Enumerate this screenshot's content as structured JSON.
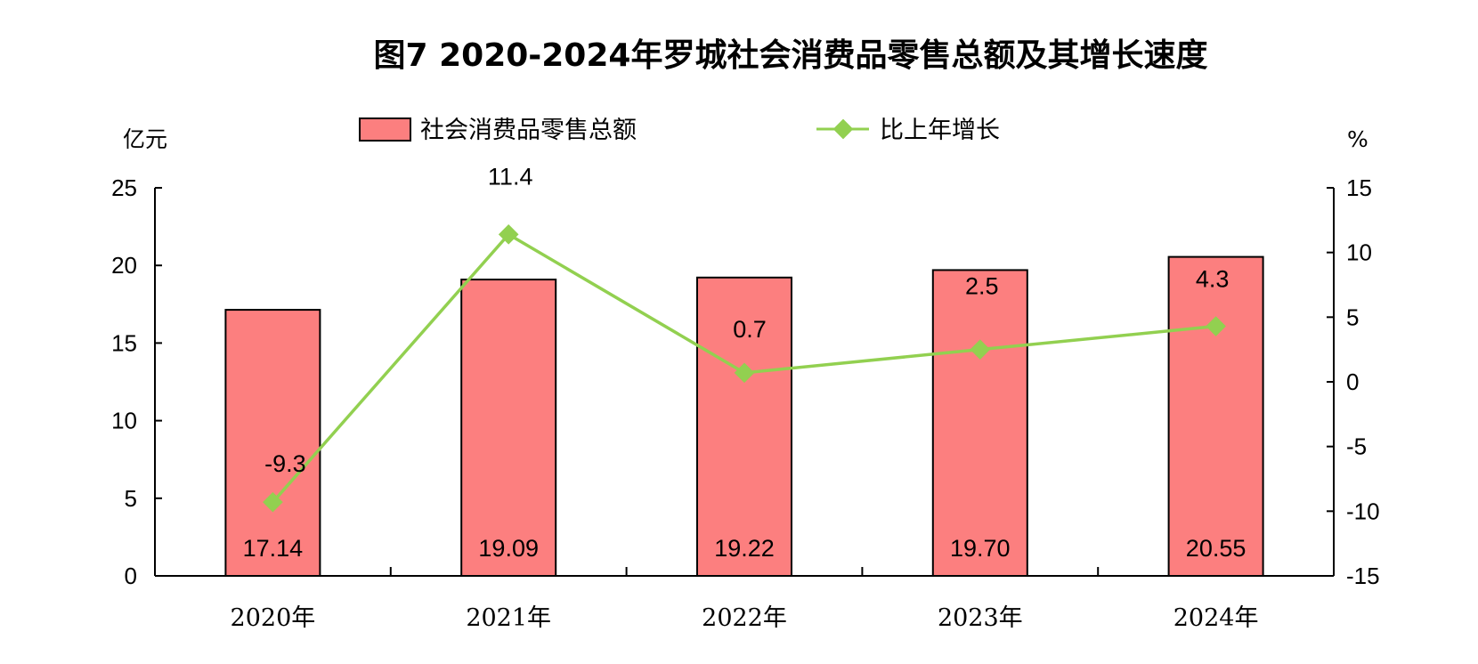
{
  "chart_data": {
    "type": "bar",
    "title": "图7  2020-2024年罗城社会消费品零售总额及其增长速度",
    "categories": [
      "2020年",
      "2021年",
      "2022年",
      "2023年",
      "2024年"
    ],
    "left_axis": {
      "unit": "亿元",
      "ylim": [
        0,
        25
      ],
      "ticks": [
        0,
        5,
        10,
        15,
        20,
        25
      ]
    },
    "right_axis": {
      "unit": "%",
      "ylim": [
        -15,
        15
      ],
      "ticks": [
        -15,
        -10,
        -5,
        0,
        5,
        10,
        15
      ]
    },
    "series": [
      {
        "name": "社会消费品零售总额",
        "type": "bar",
        "axis": "left",
        "color": "#fc7f7f",
        "values": [
          17.14,
          19.09,
          19.22,
          19.7,
          20.55
        ],
        "labels": [
          "17.14",
          "19.09",
          "19.22",
          "19.70",
          "20.55"
        ]
      },
      {
        "name": "比上年增长",
        "type": "line",
        "axis": "right",
        "color": "#92d050",
        "values": [
          -9.3,
          11.4,
          0.7,
          2.5,
          4.3
        ],
        "labels": [
          "-9.3",
          "11.4",
          "0.7",
          "2.5",
          "4.3"
        ]
      }
    ],
    "grid": false,
    "legend_position": "top"
  }
}
